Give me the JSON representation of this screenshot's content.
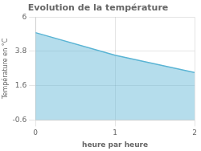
{
  "chart_data": {
    "type": "line",
    "title": "Evolution de la température",
    "xlabel": "heure par heure",
    "ylabel": "Température en °C",
    "x": [
      0,
      1,
      2
    ],
    "values": [
      5.0,
      3.55,
      2.45
    ],
    "color": "#5ab4d4",
    "xlim": [
      0,
      2
    ],
    "ylim": [
      -0.6,
      6.0
    ],
    "xticks": [
      0,
      1,
      2
    ],
    "yticks": [
      -0.6,
      1.6,
      3.8,
      6.0
    ],
    "grid": true
  }
}
